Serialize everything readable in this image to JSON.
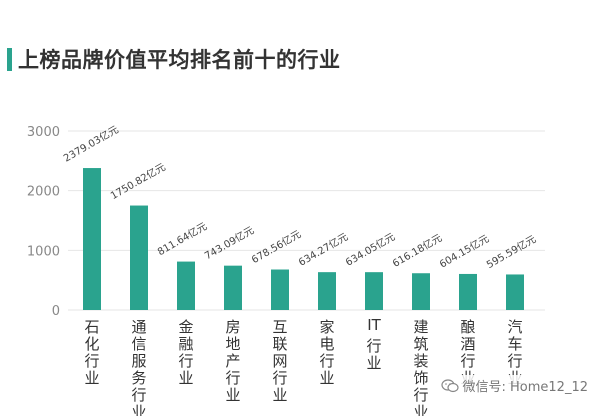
{
  "chart_data": {
    "type": "bar",
    "title": "上榜品牌价值平均排名前十的行业",
    "categories": [
      "石化行业",
      "通信服务行业",
      "金融行业",
      "房地产行业",
      "互联网行业",
      "家电行业",
      "IT行业",
      "建筑装饰行业",
      "酿酒行业",
      "汽车行业"
    ],
    "values": [
      2379.03,
      1750.82,
      811.64,
      743.09,
      678.56,
      634.27,
      634.05,
      616.18,
      604.15,
      595.59
    ],
    "data_labels": [
      "2379.03亿元",
      "1750.82亿元",
      "811.64亿元",
      "743.09亿元",
      "678.56亿元",
      "634.27亿元",
      "634.05亿元",
      "616.18亿元",
      "604.15亿元",
      "595.59亿元"
    ],
    "yticks": [
      0,
      1000,
      2000,
      3000
    ],
    "ylim": [
      0,
      3000
    ],
    "xlabel": "",
    "ylabel": "",
    "grid": true,
    "bar_color": "#2aa38e",
    "grid_color": "#e6e6e6"
  },
  "watermark": {
    "text": "微信号: Home12_12",
    "icon": "wechat-icon"
  }
}
